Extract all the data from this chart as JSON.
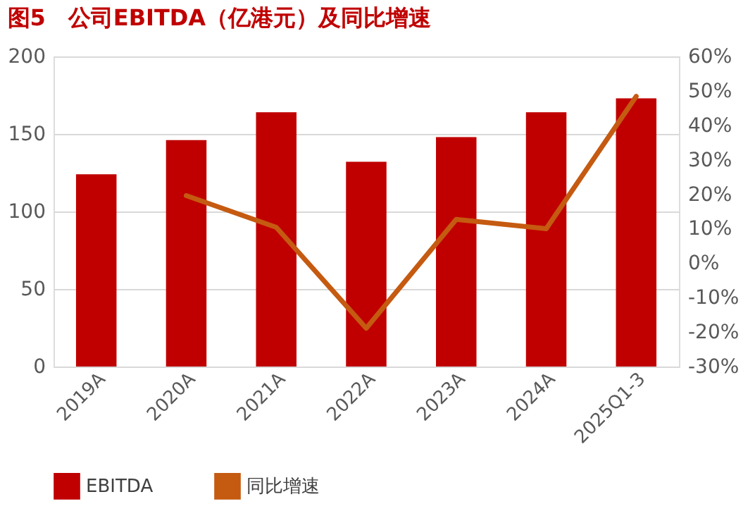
{
  "chart_data": {
    "type": "bar",
    "title": "图5　公司EBITDA（亿港元）及同比增速",
    "categories": [
      "2019A",
      "2020A",
      "2021A",
      "2022A",
      "2023A",
      "2024A",
      "2025Q1-3"
    ],
    "series": [
      {
        "name": "EBITDA",
        "color": "#c00000",
        "values": [
          124,
          146,
          164,
          132,
          148,
          164,
          173
        ]
      },
      {
        "name": "同比增速",
        "type": "line",
        "axis": "y2",
        "color": "#c55a11",
        "values": [
          null,
          19.6,
          10.4,
          -18.9,
          12.7,
          10,
          48.4
        ]
      }
    ],
    "ylim": [
      0,
      200
    ],
    "yticks": [
      0,
      50,
      100,
      150,
      200
    ],
    "y2lim": [
      -30,
      60
    ],
    "y2ticks": [
      {
        "value": -30,
        "label": "-30%"
      },
      {
        "value": -20,
        "label": "-20%"
      },
      {
        "value": -10,
        "label": "-10%"
      },
      {
        "value": 0,
        "label": "0%"
      },
      {
        "value": 10,
        "label": "10%"
      },
      {
        "value": 20,
        "label": "20%"
      },
      {
        "value": 30,
        "label": "30%"
      },
      {
        "value": 40,
        "label": "40%"
      },
      {
        "value": 50,
        "label": "50%"
      },
      {
        "value": 60,
        "label": "60%"
      }
    ],
    "grid": "y",
    "legend": "bottom",
    "marker": "none",
    "line_style": "solid"
  }
}
